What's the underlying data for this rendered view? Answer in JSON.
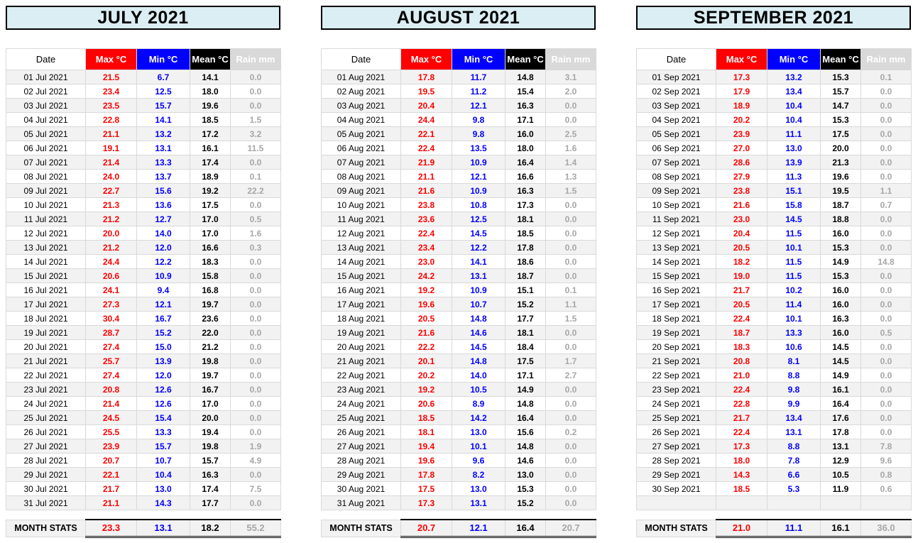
{
  "page": {
    "background": "#ffffff"
  },
  "title_bar": {
    "bg": "#daeef3",
    "border": "#000000",
    "text_color": "#000000"
  },
  "row_stripe": "#f2f2f2",
  "gridline_color": "#d9d9d9",
  "stats_label": "MONTH STATS",
  "columns": [
    {
      "key": "date",
      "label": "Date",
      "header_bg": "#ffffff",
      "header_color": "#000000"
    },
    {
      "key": "max",
      "label": "Max °C",
      "header_bg": "#ff0000",
      "header_color": "#ffffff"
    },
    {
      "key": "min",
      "label": "Min °C",
      "header_bg": "#0000ff",
      "header_color": "#ffffff"
    },
    {
      "key": "mean",
      "label": "Mean °C",
      "header_bg": "#000000",
      "header_color": "#ffffff"
    },
    {
      "key": "rain",
      "label": "Rain mm",
      "header_bg": "#d9d9d9",
      "header_color": "#ffffff"
    }
  ],
  "value_colors": {
    "date": "#000000",
    "max": "#ff0000",
    "min": "#0000ff",
    "mean": "#000000",
    "rain": "#a6a6a6"
  },
  "months": [
    {
      "title": "JULY 2021",
      "rows": [
        [
          "01 Jul 2021",
          "21.5",
          "6.7",
          "14.1",
          "0.0"
        ],
        [
          "02 Jul 2021",
          "23.4",
          "12.5",
          "18.0",
          "0.0"
        ],
        [
          "03 Jul 2021",
          "23.5",
          "15.7",
          "19.6",
          "0.0"
        ],
        [
          "04 Jul 2021",
          "22.8",
          "14.1",
          "18.5",
          "1.5"
        ],
        [
          "05 Jul 2021",
          "21.1",
          "13.2",
          "17.2",
          "3.2"
        ],
        [
          "06 Jul 2021",
          "19.1",
          "13.1",
          "16.1",
          "11.5"
        ],
        [
          "07 Jul 2021",
          "21.4",
          "13.3",
          "17.4",
          "0.0"
        ],
        [
          "08 Jul 2021",
          "24.0",
          "13.7",
          "18.9",
          "0.1"
        ],
        [
          "09 Jul 2021",
          "22.7",
          "15.6",
          "19.2",
          "22.2"
        ],
        [
          "10 Jul 2021",
          "21.3",
          "13.6",
          "17.5",
          "0.0"
        ],
        [
          "11 Jul 2021",
          "21.2",
          "12.7",
          "17.0",
          "0.5"
        ],
        [
          "12 Jul 2021",
          "20.0",
          "14.0",
          "17.0",
          "1.6"
        ],
        [
          "13 Jul 2021",
          "21.2",
          "12.0",
          "16.6",
          "0.3"
        ],
        [
          "14 Jul 2021",
          "24.4",
          "12.2",
          "18.3",
          "0.0"
        ],
        [
          "15 Jul 2021",
          "20.6",
          "10.9",
          "15.8",
          "0.0"
        ],
        [
          "16 Jul 2021",
          "24.1",
          "9.4",
          "16.8",
          "0.0"
        ],
        [
          "17 Jul 2021",
          "27.3",
          "12.1",
          "19.7",
          "0.0"
        ],
        [
          "18 Jul 2021",
          "30.4",
          "16.7",
          "23.6",
          "0.0"
        ],
        [
          "19 Jul 2021",
          "28.7",
          "15.2",
          "22.0",
          "0.0"
        ],
        [
          "20 Jul 2021",
          "27.4",
          "15.0",
          "21.2",
          "0.0"
        ],
        [
          "21 Jul 2021",
          "25.7",
          "13.9",
          "19.8",
          "0.0"
        ],
        [
          "22 Jul 2021",
          "27.4",
          "12.0",
          "19.7",
          "0.0"
        ],
        [
          "23 Jul 2021",
          "20.8",
          "12.6",
          "16.7",
          "0.0"
        ],
        [
          "24 Jul 2021",
          "21.4",
          "12.6",
          "17.0",
          "0.0"
        ],
        [
          "25 Jul 2021",
          "24.5",
          "15.4",
          "20.0",
          "0.0"
        ],
        [
          "26 Jul 2021",
          "25.5",
          "13.3",
          "19.4",
          "0.0"
        ],
        [
          "27 Jul 2021",
          "23.9",
          "15.7",
          "19.8",
          "1.9"
        ],
        [
          "28 Jul 2021",
          "20.7",
          "10.7",
          "15.7",
          "4.9"
        ],
        [
          "29 Jul 2021",
          "22.1",
          "10.4",
          "16.3",
          "0.0"
        ],
        [
          "30 Jul 2021",
          "21.7",
          "13.0",
          "17.4",
          "7.5"
        ],
        [
          "31 Jul 2021",
          "21.1",
          "14.3",
          "17.7",
          "0.0"
        ]
      ],
      "stats": {
        "max": "23.3",
        "min": "13.1",
        "mean": "18.2",
        "rain": "55.2"
      }
    },
    {
      "title": "AUGUST 2021",
      "rows": [
        [
          "01 Aug 2021",
          "17.8",
          "11.7",
          "14.8",
          "3.1"
        ],
        [
          "02 Aug 2021",
          "19.5",
          "11.2",
          "15.4",
          "2.0"
        ],
        [
          "03 Aug 2021",
          "20.4",
          "12.1",
          "16.3",
          "0.0"
        ],
        [
          "04 Aug 2021",
          "24.4",
          "9.8",
          "17.1",
          "0.0"
        ],
        [
          "05 Aug 2021",
          "22.1",
          "9.8",
          "16.0",
          "2.5"
        ],
        [
          "06 Aug 2021",
          "22.4",
          "13.5",
          "18.0",
          "1.6"
        ],
        [
          "07 Aug 2021",
          "21.9",
          "10.9",
          "16.4",
          "1.4"
        ],
        [
          "08 Aug 2021",
          "21.1",
          "12.1",
          "16.6",
          "1.3"
        ],
        [
          "09 Aug 2021",
          "21.6",
          "10.9",
          "16.3",
          "1.5"
        ],
        [
          "10 Aug 2021",
          "23.8",
          "10.8",
          "17.3",
          "0.0"
        ],
        [
          "11 Aug 2021",
          "23.6",
          "12.5",
          "18.1",
          "0.0"
        ],
        [
          "12 Aug 2021",
          "22.4",
          "14.5",
          "18.5",
          "0.0"
        ],
        [
          "13 Aug 2021",
          "23.4",
          "12.2",
          "17.8",
          "0.0"
        ],
        [
          "14 Aug 2021",
          "23.0",
          "14.1",
          "18.6",
          "0.0"
        ],
        [
          "15 Aug 2021",
          "24.2",
          "13.1",
          "18.7",
          "0.0"
        ],
        [
          "16 Aug 2021",
          "19.2",
          "10.9",
          "15.1",
          "0.1"
        ],
        [
          "17 Aug 2021",
          "19.6",
          "10.7",
          "15.2",
          "1.1"
        ],
        [
          "18 Aug 2021",
          "20.5",
          "14.8",
          "17.7",
          "1.5"
        ],
        [
          "19 Aug 2021",
          "21.6",
          "14.6",
          "18.1",
          "0.0"
        ],
        [
          "20 Aug 2021",
          "22.2",
          "14.5",
          "18.4",
          "0.0"
        ],
        [
          "21 Aug 2021",
          "20.1",
          "14.8",
          "17.5",
          "1.7"
        ],
        [
          "22 Aug 2021",
          "20.2",
          "14.0",
          "17.1",
          "2.7"
        ],
        [
          "23 Aug 2021",
          "19.2",
          "10.5",
          "14.9",
          "0.0"
        ],
        [
          "24 Aug 2021",
          "20.6",
          "8.9",
          "14.8",
          "0.0"
        ],
        [
          "25 Aug 2021",
          "18.5",
          "14.2",
          "16.4",
          "0.0"
        ],
        [
          "26 Aug 2021",
          "18.1",
          "13.0",
          "15.6",
          "0.2"
        ],
        [
          "27 Aug 2021",
          "19.4",
          "10.1",
          "14.8",
          "0.0"
        ],
        [
          "28 Aug 2021",
          "19.6",
          "9.6",
          "14.6",
          "0.0"
        ],
        [
          "29 Aug 2021",
          "17.8",
          "8.2",
          "13.0",
          "0.0"
        ],
        [
          "30 Aug 2021",
          "17.5",
          "13.0",
          "15.3",
          "0.0"
        ],
        [
          "31 Aug 2021",
          "17.3",
          "13.1",
          "15.2",
          "0.0"
        ]
      ],
      "stats": {
        "max": "20.7",
        "min": "12.1",
        "mean": "16.4",
        "rain": "20.7"
      }
    },
    {
      "title": "SEPTEMBER 2021",
      "rows": [
        [
          "01 Sep 2021",
          "17.3",
          "13.2",
          "15.3",
          "0.1"
        ],
        [
          "02 Sep 2021",
          "17.9",
          "13.4",
          "15.7",
          "0.0"
        ],
        [
          "03 Sep 2021",
          "18.9",
          "10.4",
          "14.7",
          "0.0"
        ],
        [
          "04 Sep 2021",
          "20.2",
          "10.4",
          "15.3",
          "0.0"
        ],
        [
          "05 Sep 2021",
          "23.9",
          "11.1",
          "17.5",
          "0.0"
        ],
        [
          "06 Sep 2021",
          "27.0",
          "13.0",
          "20.0",
          "0.0"
        ],
        [
          "07 Sep 2021",
          "28.6",
          "13.9",
          "21.3",
          "0.0"
        ],
        [
          "08 Sep 2021",
          "27.9",
          "11.3",
          "19.6",
          "0.0"
        ],
        [
          "09 Sep 2021",
          "23.8",
          "15.1",
          "19.5",
          "1.1"
        ],
        [
          "10 Sep 2021",
          "21.6",
          "15.8",
          "18.7",
          "0.7"
        ],
        [
          "11 Sep 2021",
          "23.0",
          "14.5",
          "18.8",
          "0.0"
        ],
        [
          "12 Sep 2021",
          "20.4",
          "11.5",
          "16.0",
          "0.0"
        ],
        [
          "13 Sep 2021",
          "20.5",
          "10.1",
          "15.3",
          "0.0"
        ],
        [
          "14 Sep 2021",
          "18.2",
          "11.5",
          "14.9",
          "14.8"
        ],
        [
          "15 Sep 2021",
          "19.0",
          "11.5",
          "15.3",
          "0.0"
        ],
        [
          "16 Sep 2021",
          "21.7",
          "10.2",
          "16.0",
          "0.0"
        ],
        [
          "17 Sep 2021",
          "20.5",
          "11.4",
          "16.0",
          "0.0"
        ],
        [
          "18 Sep 2021",
          "22.4",
          "10.1",
          "16.3",
          "0.0"
        ],
        [
          "19 Sep 2021",
          "18.7",
          "13.3",
          "16.0",
          "0.5"
        ],
        [
          "20 Sep 2021",
          "18.3",
          "10.6",
          "14.5",
          "0.0"
        ],
        [
          "21 Sep 2021",
          "20.8",
          "8.1",
          "14.5",
          "0.0"
        ],
        [
          "22 Sep 2021",
          "21.0",
          "8.8",
          "14.9",
          "0.0"
        ],
        [
          "23 Sep 2021",
          "22.4",
          "9.8",
          "16.1",
          "0.0"
        ],
        [
          "24 Sep 2021",
          "22.8",
          "9.9",
          "16.4",
          "0.0"
        ],
        [
          "25 Sep 2021",
          "21.7",
          "13.4",
          "17.6",
          "0.0"
        ],
        [
          "26 Sep 2021",
          "22.4",
          "13.1",
          "17.8",
          "0.0"
        ],
        [
          "27 Sep 2021",
          "17.3",
          "8.8",
          "13.1",
          "7.8"
        ],
        [
          "28 Sep 2021",
          "18.0",
          "7.8",
          "12.9",
          "9.6"
        ],
        [
          "29 Sep 2021",
          "14.3",
          "6.6",
          "10.5",
          "0.8"
        ],
        [
          "30 Sep 2021",
          "18.5",
          "5.3",
          "11.9",
          "0.6"
        ],
        [
          "",
          "",
          "",
          "",
          ""
        ]
      ],
      "stats": {
        "max": "21.0",
        "min": "11.1",
        "mean": "16.1",
        "rain": "36.0"
      }
    }
  ]
}
